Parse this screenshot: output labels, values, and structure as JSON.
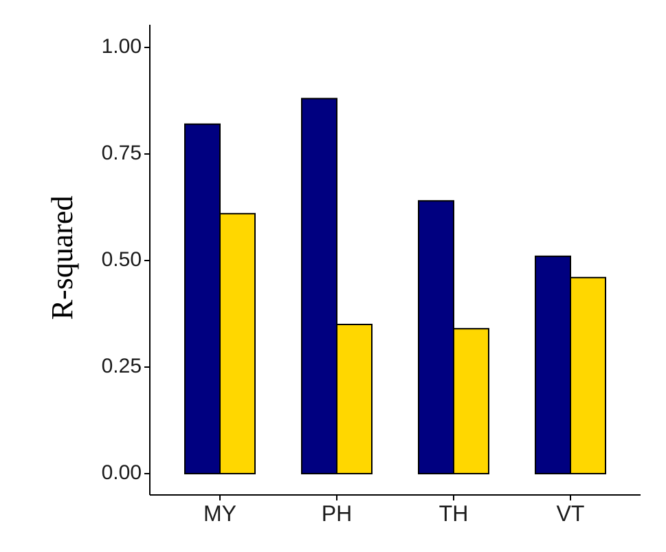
{
  "chart_data": {
    "type": "bar",
    "title": "",
    "xlabel": "",
    "ylabel": "R-squared",
    "categories": [
      "MY",
      "PH",
      "TH",
      "VT"
    ],
    "series": [
      {
        "values": [
          0.82,
          0.88,
          0.64,
          0.51
        ],
        "color": "#000080"
      },
      {
        "values": [
          0.61,
          0.35,
          0.34,
          0.46
        ],
        "color": "#FFD700"
      }
    ],
    "ylim": [
      0,
      1.05
    ],
    "yticks": [
      0.0,
      0.25,
      0.5,
      0.75,
      1.0
    ],
    "ytick_labels": [
      "0.00",
      "0.25",
      "0.50",
      "0.75",
      "1.00"
    ],
    "grid": false,
    "legend": "none"
  }
}
